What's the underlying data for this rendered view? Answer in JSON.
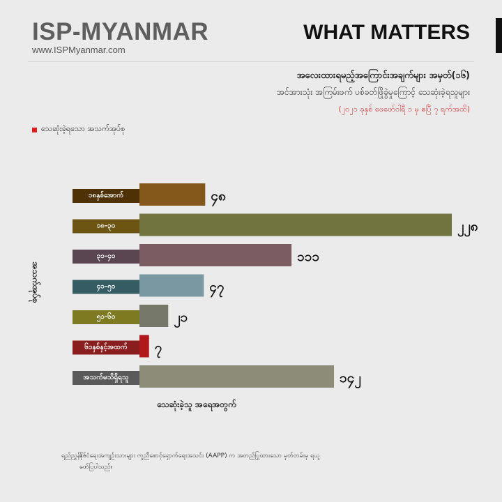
{
  "header": {
    "brand": "ISP-MYANMAR",
    "url": "www.ISPMyanmar.com",
    "tag": "WHAT MATTERS"
  },
  "title": "အလေးထားရမည့်အကြောင်းအချက်များ အမှတ်(၁၆)",
  "subtitle": "အင်အားသုံး အကြမ်းဖက် ပစ်ခတ်ဖြိုခွဲမှုကြောင့် သေဆုံးခဲ့ရသူများ",
  "period": "(၂၀၂၁ ခုနှစ် ဖေဖော်ဝါရီ ၁ မှ ဧပြီ ၇ ရက်အထိ)",
  "legend": {
    "label": "သေဆုံးခဲ့ရသော အသက်အုပ်စု",
    "color": "#e02020"
  },
  "chart_data": {
    "type": "bar",
    "orientation": "horizontal",
    "ylabel": "အသက်အုပ်စု",
    "xlabel": "သေဆုံးခဲ့သူ အရေအတွက်",
    "categories": [
      "၁၈နှစ်အောက်",
      "၁၈-၃၀",
      "၃၁-၄၀",
      "၄၁-၅၀",
      "၅၁-၆၀",
      "၆၁နှစ်နှင့်အထက်",
      "အသက်မသိရှိရသူ"
    ],
    "values": [
      48,
      228,
      111,
      47,
      21,
      7,
      142
    ],
    "value_labels": [
      "၄၈",
      "၂၂၈",
      "၁၁၁",
      "၄၇",
      "၂၁",
      "၇",
      "၁၄၂"
    ],
    "bar_colors": [
      "#83581a",
      "#727440",
      "#7a5c62",
      "#7a98a2",
      "#76786a",
      "#b0181c",
      "#8c8c78"
    ],
    "label_colors": [
      "#4e3105",
      "#6c5412",
      "#5a4650",
      "#345c62",
      "#7e7a22",
      "#8a1e1e",
      "#5a5a5a"
    ],
    "grid": false,
    "legend_position": "top-left"
  },
  "source": {
    "label": "ရည်ညွှန်း -",
    "text": "နိုင်ငံရေးအကျဉ်းသားများ ကူညီစောင့်ရှောက်ရေးအသင်း (AAPP) က အတည်ပြုထားသော မှတ်တမ်းမှ ရယူဖော်ပြပါသည်။"
  }
}
